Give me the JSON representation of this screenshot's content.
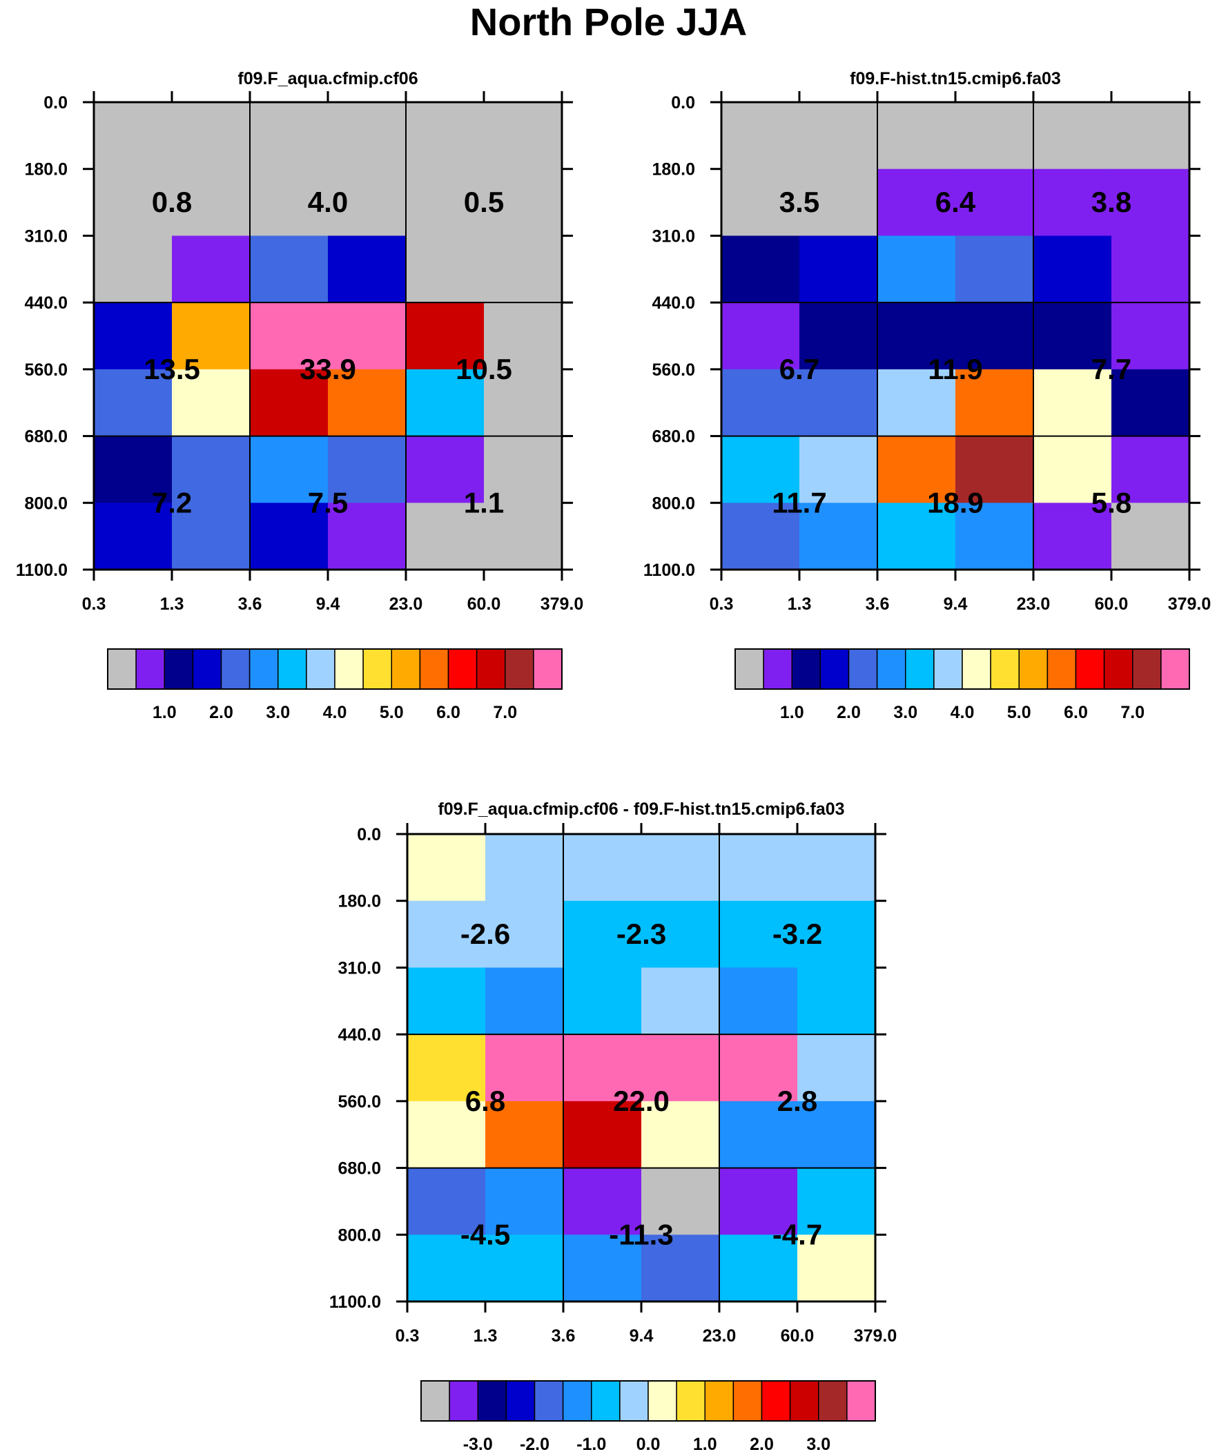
{
  "page_title": "North Pole JJA",
  "colors": [
    "#c0c0c0",
    "#8020f0",
    "#00008c",
    "#0000cd",
    "#4169e1",
    "#1e90ff",
    "#00bfff",
    "#a0d2ff",
    "#ffffc8",
    "#ffe030",
    "#ffaa00",
    "#ff6e00",
    "#ff0000",
    "#cd0000",
    "#a52828",
    "#ff69b4"
  ],
  "chart_data": [
    {
      "type": "heatmap",
      "title": "f09.F_aqua.cfmip.cf06",
      "x_ticks": [
        "0.3",
        "1.3",
        "3.6",
        "9.4",
        "23.0",
        "60.0",
        "379.0"
      ],
      "y_ticks": [
        "0.0",
        "180.0",
        "310.0",
        "440.0",
        "560.0",
        "680.0",
        "800.0",
        "1100.0"
      ],
      "cell_colors": [
        [
          0,
          0,
          0,
          0,
          0,
          0
        ],
        [
          0,
          0,
          0,
          0,
          0,
          0
        ],
        [
          0,
          1,
          4,
          3,
          0,
          0
        ],
        [
          3,
          10,
          15,
          15,
          13,
          0
        ],
        [
          4,
          8,
          13,
          11,
          6,
          0
        ],
        [
          2,
          4,
          5,
          4,
          1,
          0
        ],
        [
          3,
          4,
          3,
          1,
          0,
          0
        ]
      ],
      "block_values": [
        [
          "0.8",
          "4.0",
          "0.5"
        ],
        [
          "13.5",
          "33.9",
          "10.5"
        ],
        [
          "7.2",
          "7.5",
          "1.1"
        ]
      ],
      "legend_labels": [
        "1.0",
        "2.0",
        "3.0",
        "4.0",
        "5.0",
        "6.0",
        "7.0"
      ]
    },
    {
      "type": "heatmap",
      "title": "f09.F-hist.tn15.cmip6.fa03",
      "x_ticks": [
        "0.3",
        "1.3",
        "3.6",
        "9.4",
        "23.0",
        "60.0",
        "379.0"
      ],
      "y_ticks": [
        "0.0",
        "180.0",
        "310.0",
        "440.0",
        "560.0",
        "680.0",
        "800.0",
        "1100.0"
      ],
      "cell_colors": [
        [
          0,
          0,
          0,
          0,
          0,
          0
        ],
        [
          0,
          0,
          1,
          1,
          1,
          1
        ],
        [
          2,
          3,
          5,
          4,
          3,
          1
        ],
        [
          1,
          2,
          2,
          2,
          2,
          1
        ],
        [
          4,
          4,
          7,
          11,
          8,
          2
        ],
        [
          6,
          7,
          11,
          14,
          8,
          1
        ],
        [
          4,
          5,
          6,
          5,
          1,
          0
        ]
      ],
      "block_values": [
        [
          "3.5",
          "6.4",
          "3.8"
        ],
        [
          "6.7",
          "11.9",
          "7.7"
        ],
        [
          "11.7",
          "18.9",
          "5.8"
        ]
      ],
      "legend_labels": [
        "1.0",
        "2.0",
        "3.0",
        "4.0",
        "5.0",
        "6.0",
        "7.0"
      ]
    },
    {
      "type": "heatmap",
      "title": "f09.F_aqua.cfmip.cf06 - f09.F-hist.tn15.cmip6.fa03",
      "x_ticks": [
        "0.3",
        "1.3",
        "3.6",
        "9.4",
        "23.0",
        "60.0",
        "379.0"
      ],
      "y_ticks": [
        "0.0",
        "180.0",
        "310.0",
        "440.0",
        "560.0",
        "680.0",
        "800.0",
        "1100.0"
      ],
      "cell_colors": [
        [
          8,
          7,
          7,
          7,
          7,
          7
        ],
        [
          7,
          7,
          6,
          6,
          6,
          6
        ],
        [
          6,
          5,
          6,
          7,
          5,
          6
        ],
        [
          9,
          15,
          15,
          15,
          15,
          7
        ],
        [
          8,
          11,
          13,
          8,
          5,
          5
        ],
        [
          4,
          5,
          1,
          0,
          1,
          6
        ],
        [
          6,
          6,
          5,
          4,
          6,
          8
        ]
      ],
      "block_values": [
        [
          "-2.6",
          "-2.3",
          "-3.2"
        ],
        [
          "6.8",
          "22.0",
          "2.8"
        ],
        [
          "-4.5",
          "-11.3",
          "-4.7"
        ]
      ],
      "legend_labels": [
        "-3.0",
        "-2.0",
        "-1.0",
        "0.0",
        "1.0",
        "2.0",
        "3.0"
      ]
    }
  ]
}
